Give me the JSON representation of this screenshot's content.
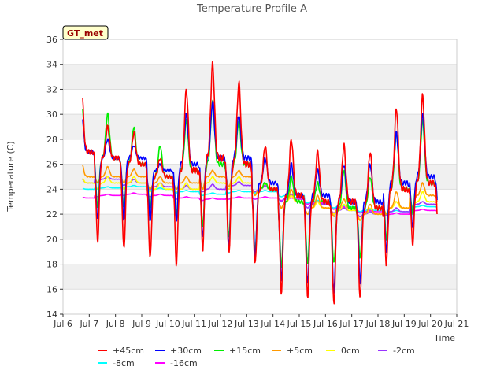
{
  "chart_data": {
    "type": "line",
    "title": "Temperature Profile A",
    "xlabel": "Time",
    "ylabel": "Temperature (C)",
    "annotation": "GT_met",
    "xlim": [
      6,
      21
    ],
    "ylim": [
      14,
      36
    ],
    "x_ticks": [
      6,
      7,
      8,
      9,
      10,
      11,
      12,
      13,
      14,
      15,
      16,
      17,
      18,
      19,
      20,
      21
    ],
    "x_tick_labels": [
      "Jul 6",
      "Jul 7",
      "Jul 8",
      "Jul 9",
      "Jul 10",
      "Jul 11",
      "Jul 12",
      "Jul 13",
      "Jul 14",
      "Jul 15",
      "Jul 16",
      "Jul 17",
      "Jul 18",
      "Jul 19",
      "Jul 20",
      "Jul 21"
    ],
    "y_ticks": [
      14,
      16,
      18,
      20,
      22,
      24,
      26,
      28,
      30,
      32,
      34,
      36
    ],
    "grid": true,
    "legend_position": "bottom",
    "days": [
      6.7,
      7.7,
      8.7,
      9.7,
      10.7,
      11.7,
      12.7,
      13.7,
      14.7,
      15.7,
      16.7,
      17.7,
      18.7,
      19.7
    ],
    "series": [
      {
        "name": "+45cm",
        "color": "#ff0000",
        "mean": [
          27.0,
          26.5,
          26.0,
          25.0,
          25.5,
          26.5,
          26.0,
          24.0,
          23.5,
          23.0,
          23.0,
          22.5,
          24.0,
          24.5
        ],
        "max": [
          32.5,
          29.0,
          28.5,
          26.5,
          32.0,
          34.0,
          32.5,
          27.5,
          28.0,
          27.0,
          27.5,
          27.0,
          30.5,
          31.5
        ],
        "min": [
          21.8,
          19.8,
          19.2,
          18.5,
          18.0,
          19.2,
          18.8,
          18.0,
          15.7,
          15.4,
          14.7,
          15.2,
          18.0,
          19.6
        ]
      },
      {
        "name": "+30cm",
        "color": "#0000ff",
        "mean": [
          27.0,
          26.5,
          26.5,
          25.5,
          26.0,
          26.5,
          26.5,
          24.5,
          23.5,
          23.5,
          23.0,
          23.0,
          24.5,
          25.0
        ],
        "max": [
          30.5,
          28.0,
          27.5,
          26.0,
          30.0,
          31.0,
          30.0,
          26.5,
          26.0,
          25.5,
          26.0,
          26.0,
          28.5,
          30.0
        ],
        "min": [
          23.0,
          21.5,
          21.5,
          21.5,
          21.5,
          20.0,
          19.2,
          18.6,
          16.7,
          16.3,
          15.6,
          16.5,
          19.0,
          20.8
        ]
      },
      {
        "name": "+15cm",
        "color": "#00ee00",
        "mean": [
          27.0,
          26.5,
          26.0,
          25.0,
          25.5,
          26.0,
          26.0,
          24.0,
          23.0,
          23.0,
          22.5,
          22.5,
          24.0,
          24.5
        ],
        "max": [
          31.5,
          30.0,
          29.0,
          27.5,
          29.5,
          31.0,
          29.5,
          24.5,
          25.0,
          24.5,
          25.5,
          25.0,
          28.5,
          29.5
        ],
        "min": [
          24.0,
          22.5,
          22.5,
          22.5,
          22.0,
          21.0,
          20.0,
          19.0,
          17.8,
          18.0,
          18.0,
          18.5,
          20.0,
          22.0
        ]
      },
      {
        "name": "+5cm",
        "color": "#ff9900",
        "mean": [
          25.0,
          25.0,
          25.0,
          24.5,
          24.5,
          25.0,
          25.0,
          24.0,
          23.0,
          22.5,
          22.5,
          22.0,
          22.5,
          23.5
        ],
        "max": [
          26.2,
          25.8,
          25.6,
          25.0,
          25.0,
          25.5,
          25.5,
          24.5,
          24.0,
          23.5,
          23.2,
          22.8,
          23.8,
          24.5
        ],
        "min": [
          24.0,
          24.5,
          24.5,
          24.0,
          24.0,
          24.0,
          24.2,
          23.5,
          22.5,
          22.0,
          21.8,
          21.5,
          22.0,
          22.5
        ]
      },
      {
        "name": "0cm",
        "color": "#ffff00",
        "mean": [
          24.5,
          24.5,
          24.5,
          24.0,
          24.0,
          24.5,
          24.5,
          24.0,
          23.0,
          22.5,
          22.3,
          22.0,
          22.5,
          23.0
        ],
        "max": [
          25.0,
          25.0,
          25.0,
          24.5,
          24.5,
          25.0,
          25.0,
          24.5,
          23.5,
          23.0,
          22.8,
          22.5,
          23.0,
          23.8
        ],
        "min": [
          24.0,
          24.0,
          24.0,
          23.8,
          23.8,
          24.0,
          24.0,
          23.5,
          22.5,
          22.0,
          22.0,
          21.5,
          22.0,
          22.5
        ]
      },
      {
        "name": "-2cm",
        "color": "#9933ff",
        "mean": [
          24.5,
          24.8,
          24.5,
          24.2,
          24.0,
          24.0,
          24.3,
          24.0,
          23.3,
          22.8,
          22.3,
          22.0,
          22.2,
          22.8
        ],
        "max": [
          24.9,
          25.0,
          24.8,
          24.5,
          24.3,
          24.4,
          24.6,
          24.3,
          23.6,
          23.0,
          22.5,
          22.2,
          22.5,
          23.0
        ],
        "min": [
          24.2,
          24.5,
          24.3,
          24.0,
          23.8,
          23.8,
          24.0,
          23.8,
          23.0,
          22.5,
          22.1,
          21.8,
          22.0,
          22.6
        ]
      },
      {
        "name": "-8cm",
        "color": "#00ffff",
        "mean": [
          24.0,
          24.1,
          24.2,
          24.0,
          23.8,
          23.6,
          23.8,
          23.8,
          23.5,
          23.0,
          22.6,
          22.3,
          22.2,
          22.6
        ],
        "max": [
          24.1,
          24.2,
          24.3,
          24.1,
          23.9,
          23.7,
          23.9,
          23.9,
          23.6,
          23.1,
          22.7,
          22.4,
          22.3,
          22.7
        ],
        "min": [
          23.9,
          24.0,
          24.1,
          23.9,
          23.7,
          23.5,
          23.7,
          23.7,
          23.4,
          22.9,
          22.5,
          22.2,
          22.1,
          22.5
        ]
      },
      {
        "name": "-16cm",
        "color": "#ff00ff",
        "mean": [
          23.3,
          23.5,
          23.6,
          23.5,
          23.3,
          23.2,
          23.3,
          23.3,
          23.2,
          22.9,
          22.5,
          22.2,
          22.0,
          22.3
        ],
        "max": [
          23.4,
          23.6,
          23.7,
          23.6,
          23.4,
          23.3,
          23.4,
          23.4,
          23.3,
          23.0,
          22.6,
          22.3,
          22.1,
          22.4
        ],
        "min": [
          23.2,
          23.4,
          23.5,
          23.4,
          23.2,
          23.1,
          23.2,
          23.2,
          23.1,
          22.8,
          22.4,
          22.1,
          21.9,
          22.2
        ]
      }
    ]
  }
}
